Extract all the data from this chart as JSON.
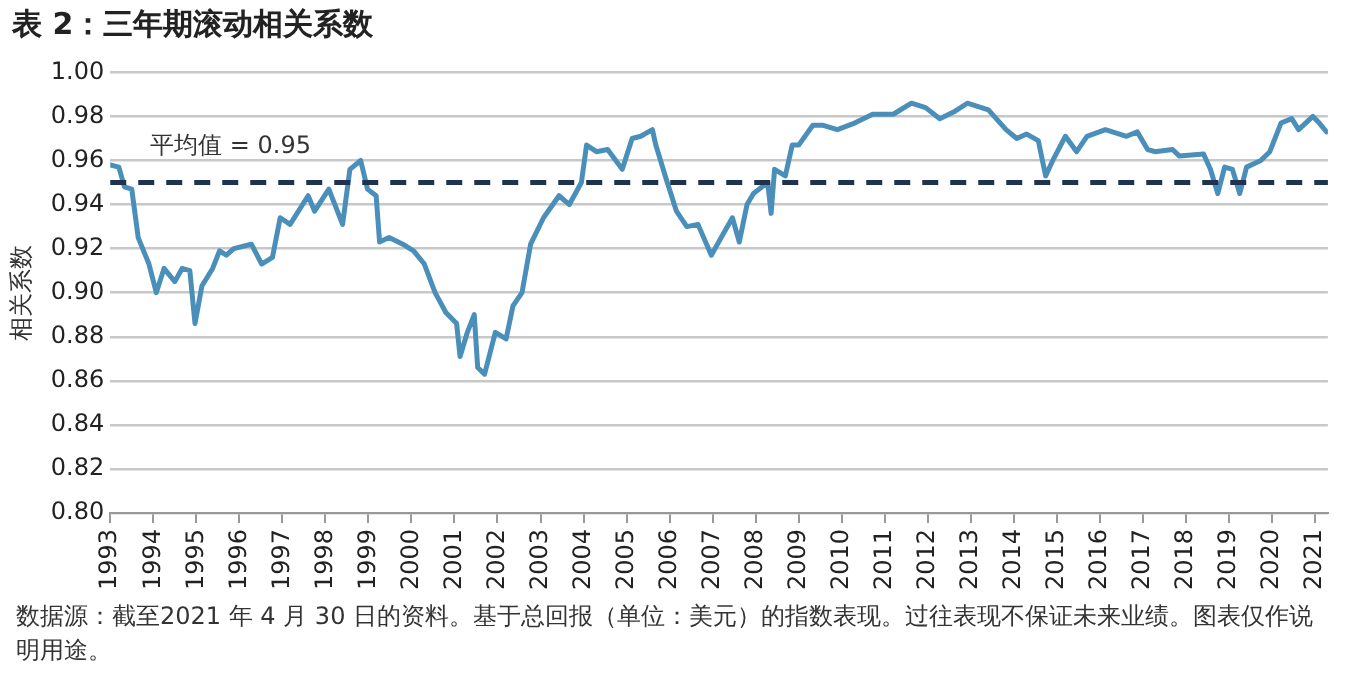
{
  "chart_data": {
    "type": "line",
    "title": "表 2：三年期滚动相关系数",
    "ylabel": "相关系数",
    "annotations": [
      "数据源：截至2021 年 4 月 30 日的资料。基于总回报（单位：美元）的指数表现。过往表现不保证未来业绩。图表仅作说明用途。"
    ],
    "series": [
      {
        "color": "#4a8fba",
        "x": [
          1993.0,
          1993.2,
          1993.33,
          1993.5,
          1993.65,
          1993.9,
          1994.07,
          1994.25,
          1994.5,
          1994.67,
          1994.85,
          1994.97,
          1995.13,
          1995.38,
          1995.54,
          1995.7,
          1995.87,
          1996.28,
          1996.52,
          1996.77,
          1996.95,
          1997.18,
          1997.6,
          1997.75,
          1998.08,
          1998.4,
          1998.57,
          1998.82,
          1998.98,
          1999.18,
          1999.26,
          1999.48,
          1999.8,
          2000.05,
          2000.3,
          2000.55,
          2000.8,
          2001.05,
          2001.13,
          2001.3,
          2001.46,
          2001.54,
          2001.7,
          2001.95,
          2002.2,
          2002.36,
          2002.57,
          2002.77,
          2003.07,
          2003.43,
          2003.67,
          2003.95,
          2004.07,
          2004.3,
          2004.56,
          2004.9,
          2005.13,
          2005.33,
          2005.6,
          2005.68,
          2005.93,
          2006.16,
          2006.4,
          2006.66,
          2006.97,
          2007.2,
          2007.46,
          2007.62,
          2007.8,
          2007.95,
          2008.28,
          2008.36,
          2008.44,
          2008.69,
          2008.85,
          2009.0,
          2009.33,
          2009.57,
          2009.9,
          2010.3,
          2010.72,
          2011.2,
          2011.62,
          2011.95,
          2012.28,
          2012.6,
          2012.92,
          2013.41,
          2013.82,
          2014.07,
          2014.3,
          2014.57,
          2014.74,
          2014.93,
          2015.2,
          2015.46,
          2015.7,
          2016.13,
          2016.62,
          2016.87,
          2017.11,
          2017.28,
          2017.69,
          2017.85,
          2018.41,
          2018.57,
          2018.74,
          2018.9,
          2019.08,
          2019.25,
          2019.41,
          2019.74,
          2019.95,
          2020.21,
          2020.46,
          2020.62,
          2020.95,
          2021.1,
          2021.27
        ],
        "values": [
          0.958,
          0.957,
          0.948,
          0.947,
          0.925,
          0.913,
          0.9,
          0.911,
          0.905,
          0.911,
          0.91,
          0.886,
          0.903,
          0.911,
          0.919,
          0.917,
          0.92,
          0.922,
          0.913,
          0.916,
          0.934,
          0.931,
          0.944,
          0.937,
          0.947,
          0.931,
          0.956,
          0.96,
          0.947,
          0.944,
          0.923,
          0.925,
          0.922,
          0.919,
          0.913,
          0.9,
          0.891,
          0.886,
          0.871,
          0.882,
          0.89,
          0.866,
          0.863,
          0.882,
          0.879,
          0.894,
          0.9,
          0.922,
          0.934,
          0.944,
          0.94,
          0.95,
          0.967,
          0.964,
          0.965,
          0.956,
          0.97,
          0.971,
          0.974,
          0.967,
          0.951,
          0.937,
          0.93,
          0.931,
          0.917,
          0.925,
          0.934,
          0.923,
          0.94,
          0.945,
          0.95,
          0.936,
          0.956,
          0.953,
          0.967,
          0.967,
          0.976,
          0.976,
          0.974,
          0.977,
          0.981,
          0.981,
          0.986,
          0.984,
          0.979,
          0.982,
          0.986,
          0.983,
          0.974,
          0.97,
          0.972,
          0.969,
          0.953,
          0.961,
          0.971,
          0.964,
          0.971,
          0.974,
          0.971,
          0.973,
          0.965,
          0.964,
          0.965,
          0.962,
          0.963,
          0.956,
          0.945,
          0.957,
          0.956,
          0.945,
          0.957,
          0.96,
          0.964,
          0.977,
          0.979,
          0.974,
          0.98,
          0.977,
          0.973
        ]
      }
    ],
    "xlim": [
      1993,
      2021.3
    ],
    "xticks": [
      1993,
      1994,
      1995,
      1996,
      1997,
      1998,
      1999,
      2000,
      2001,
      2002,
      2003,
      2004,
      2005,
      2006,
      2007,
      2008,
      2009,
      2010,
      2011,
      2012,
      2013,
      2014,
      2015,
      2016,
      2017,
      2018,
      2019,
      2020,
      2021
    ],
    "ylim": [
      0.8,
      1.0
    ],
    "yticks": [
      {
        "value": 0.8,
        "label": "0.80"
      },
      {
        "value": 0.82,
        "label": "0.82"
      },
      {
        "value": 0.84,
        "label": "0.84"
      },
      {
        "value": 0.86,
        "label": "0.86"
      },
      {
        "value": 0.88,
        "label": "0.88"
      },
      {
        "value": 0.9,
        "label": "0.90"
      },
      {
        "value": 0.92,
        "label": "0.92"
      },
      {
        "value": 0.94,
        "label": "0.94"
      },
      {
        "value": 0.96,
        "label": "0.96"
      },
      {
        "value": 0.98,
        "label": "0.98"
      },
      {
        "value": 1.0,
        "label": "1.00"
      }
    ],
    "grid": "y",
    "legend": false,
    "marker": "none",
    "line_style": "solid",
    "ref_lines": [
      {
        "axis": "y",
        "value": 0.95,
        "label": "平均值 = 0.95",
        "color": "#1f3350",
        "line_style": "dashed"
      }
    ]
  }
}
